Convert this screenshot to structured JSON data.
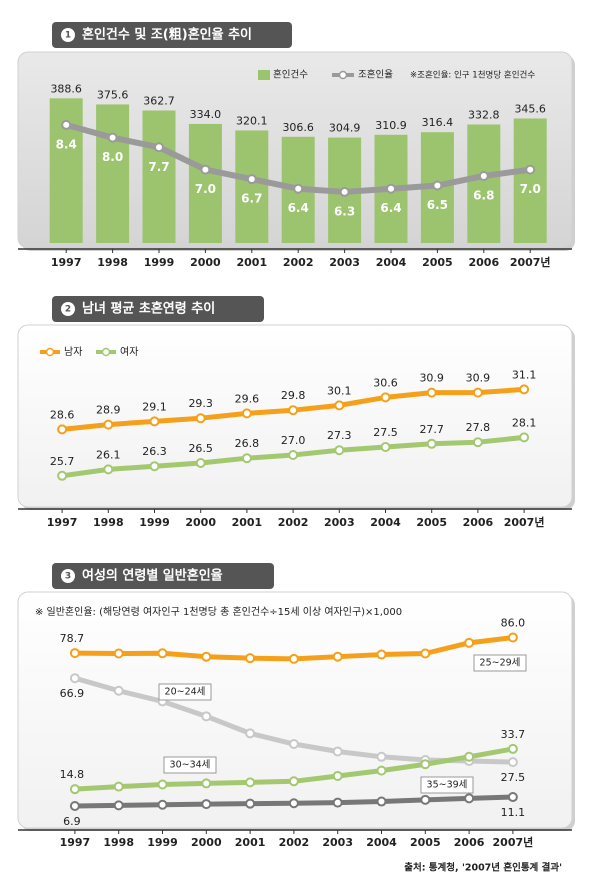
{
  "chart_data": [
    {
      "type": "bar",
      "section_number": "1",
      "title": "혼인건수 및 조(粗)혼인율 추이",
      "note": "※조혼인율: 인구 1천명당 혼인건수",
      "categories": [
        "1997",
        "1998",
        "1999",
        "2000",
        "2001",
        "2002",
        "2003",
        "2004",
        "2005",
        "2006",
        "2007년"
      ],
      "ylim": [
        80,
        400
      ],
      "y2lim": [
        4.7,
        9.4
      ],
      "series": [
        {
          "name": "혼인건수",
          "type": "bar",
          "color": "#9cc46e",
          "values": [
            388.6,
            375.6,
            362.7,
            334.0,
            320.1,
            306.6,
            304.9,
            310.9,
            316.4,
            332.8,
            345.6
          ],
          "value_labels": [
            "388.6",
            "375.6",
            "362.7",
            "334.0",
            "320.1",
            "306.6",
            "304.9",
            "310.9",
            "316.4",
            "332.8",
            "345.6"
          ]
        },
        {
          "name": "조혼인율",
          "type": "line",
          "axis": "y2",
          "color": "#9a9a9a",
          "values": [
            8.4,
            8.0,
            7.7,
            7.0,
            6.7,
            6.4,
            6.3,
            6.4,
            6.5,
            6.8,
            7.0
          ],
          "value_labels": [
            "8.4",
            "8.0",
            "7.7",
            "7.0",
            "6.7",
            "6.4",
            "6.3",
            "6.4",
            "6.5",
            "6.8",
            "7.0"
          ]
        }
      ]
    },
    {
      "type": "line",
      "section_number": "2",
      "title": "남녀 평균 초혼연령 추이",
      "categories": [
        "1997",
        "1998",
        "1999",
        "2000",
        "2001",
        "2002",
        "2003",
        "2004",
        "2005",
        "2006",
        "2007년"
      ],
      "ylim": [
        24,
        32
      ],
      "series": [
        {
          "name": "남자",
          "color": "#f5a01a",
          "values": [
            28.6,
            28.9,
            29.1,
            29.3,
            29.6,
            29.8,
            30.1,
            30.6,
            30.9,
            30.9,
            31.1
          ]
        },
        {
          "name": "여자",
          "color": "#a3c870",
          "values": [
            25.7,
            26.1,
            26.3,
            26.5,
            26.8,
            27.0,
            27.3,
            27.5,
            27.7,
            27.8,
            28.1
          ],
          "value_labels": [
            "25.7",
            "26.1",
            "26.3",
            "26.5",
            "26.8",
            "27.0",
            "27.3",
            "27.5",
            "27.7",
            "27.8",
            "28.1"
          ]
        }
      ]
    },
    {
      "type": "line",
      "section_number": "3",
      "title": "여성의 연령별 일반혼인율",
      "note": "※ 일반혼인율: (해당연령 여자인구 1천명당 총 혼인건수÷15세 이상 여자인구)×1,000",
      "categories": [
        "1997",
        "1998",
        "1999",
        "2000",
        "2001",
        "2002",
        "2003",
        "2004",
        "2005",
        "2006",
        "2007년"
      ],
      "ylim": [
        0,
        90
      ],
      "series": [
        {
          "name": "25~29세",
          "color": "#f5a01a",
          "values": [
            78.7,
            78.5,
            78.6,
            77.0,
            76.3,
            76.0,
            77.0,
            78.0,
            78.5,
            83.5,
            86.0
          ],
          "value_labels": [
            "78.7",
            null,
            null,
            null,
            null,
            null,
            null,
            null,
            null,
            null,
            "86.0"
          ]
        },
        {
          "name": "20~24세",
          "color": "#c8c8c8",
          "values": [
            66.9,
            61.0,
            56.0,
            49.0,
            41.0,
            36.0,
            32.5,
            30.0,
            28.5,
            28.0,
            27.5
          ]
        },
        {
          "name": "30~34세",
          "color": "#a3c870",
          "values": [
            14.8,
            16.0,
            17.0,
            17.5,
            18.0,
            18.5,
            21.0,
            23.5,
            26.5,
            30.0,
            33.7
          ]
        },
        {
          "name": "35~39세",
          "color": "#777777",
          "values": [
            6.9,
            7.2,
            7.5,
            7.8,
            8.0,
            8.2,
            8.5,
            9.0,
            9.8,
            10.5,
            11.1
          ]
        }
      ]
    }
  ],
  "source": "출처: 통계청, '2007년 혼인통계 결과'"
}
